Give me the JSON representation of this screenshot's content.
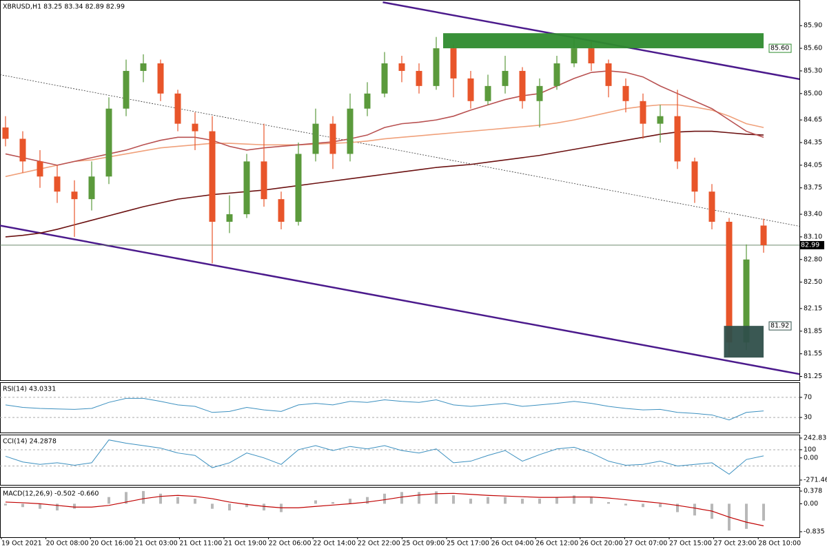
{
  "chart_data": [
    {
      "type": "candlestick",
      "title": "XBRUSD,H1  83.25 83.34 82.89 82.99",
      "ylim": [
        81.2,
        86.24
      ],
      "yticks": [
        {
          "value": 85.9,
          "label": "85.90"
        },
        {
          "value": 85.6,
          "label": "85.60"
        },
        {
          "value": 85.3,
          "label": "85.30"
        },
        {
          "value": 85.0,
          "label": "85.00"
        },
        {
          "value": 84.65,
          "label": "84.65"
        },
        {
          "value": 84.35,
          "label": "84.35"
        },
        {
          "value": 84.05,
          "label": "84.05"
        },
        {
          "value": 83.75,
          "label": "83.75"
        },
        {
          "value": 83.4,
          "label": "83.40"
        },
        {
          "value": 83.1,
          "label": "83.10"
        },
        {
          "value": 82.8,
          "label": "82.80"
        },
        {
          "value": 82.5,
          "label": "82.50"
        },
        {
          "value": 82.15,
          "label": "82.15"
        },
        {
          "value": 81.85,
          "label": "81.85"
        },
        {
          "value": 81.55,
          "label": "81.55"
        },
        {
          "value": 81.25,
          "label": "81.25"
        }
      ],
      "xtick_labels": [
        "19 Oct 2021",
        "20 Oct 08:00",
        "20 Oct 16:00",
        "21 Oct 03:00",
        "21 Oct 11:00",
        "21 Oct 19:00",
        "22 Oct 06:00",
        "22 Oct 14:00",
        "22 Oct 22:00",
        "25 Oct 09:00",
        "25 Oct 17:00",
        "26 Oct 04:00",
        "26 Oct 12:00",
        "26 Oct 20:00",
        "27 Oct 07:00",
        "27 Oct 15:00",
        "27 Oct 23:00",
        "28 Oct 10:00"
      ],
      "up_color": "#5b9a3c",
      "down_color": "#e8552a",
      "open": [
        84.55,
        84.4,
        84.1,
        83.9,
        83.7,
        83.6,
        83.9,
        84.8,
        85.3,
        85.4,
        85.0,
        84.6,
        84.5,
        83.3,
        83.4,
        84.1,
        83.6,
        83.3,
        84.2,
        84.6,
        84.2,
        84.8,
        85.0,
        85.4,
        85.3,
        85.1,
        85.6,
        85.2,
        84.9,
        85.1,
        85.3,
        84.9,
        85.1,
        85.4,
        85.6,
        85.4,
        85.1,
        84.9,
        84.6,
        84.7,
        84.1,
        83.7,
        83.3,
        81.7,
        83.25
      ],
      "high": [
        84.7,
        84.5,
        84.25,
        84.05,
        83.85,
        84.1,
        84.95,
        85.45,
        85.52,
        85.45,
        85.05,
        84.75,
        84.7,
        83.65,
        84.2,
        84.6,
        83.7,
        84.35,
        84.8,
        84.7,
        85.0,
        85.15,
        85.55,
        85.5,
        85.4,
        85.75,
        85.65,
        85.3,
        85.25,
        85.5,
        85.35,
        85.2,
        85.5,
        85.75,
        85.7,
        85.45,
        85.2,
        85.0,
        84.85,
        85.05,
        84.15,
        83.8,
        83.35,
        83.0,
        83.34
      ],
      "low": [
        84.3,
        83.95,
        83.75,
        83.55,
        83.1,
        83.45,
        83.8,
        84.7,
        85.15,
        84.9,
        84.5,
        84.25,
        82.75,
        83.15,
        83.35,
        83.5,
        83.2,
        83.25,
        84.1,
        84.0,
        84.1,
        84.7,
        84.95,
        85.15,
        85.0,
        85.05,
        84.95,
        84.8,
        84.85,
        85.0,
        84.8,
        84.55,
        85.05,
        85.35,
        85.3,
        84.95,
        84.75,
        84.4,
        84.35,
        84.0,
        83.55,
        83.2,
        81.52,
        81.6,
        82.89
      ],
      "close": [
        84.4,
        84.1,
        83.9,
        83.7,
        83.6,
        83.9,
        84.8,
        85.3,
        85.4,
        85.0,
        84.6,
        84.5,
        83.3,
        83.4,
        84.1,
        83.6,
        83.3,
        84.2,
        84.6,
        84.2,
        84.8,
        85.0,
        85.4,
        85.3,
        85.1,
        85.6,
        85.2,
        84.9,
        85.1,
        85.3,
        84.9,
        85.1,
        85.4,
        85.6,
        85.4,
        85.1,
        84.9,
        84.6,
        84.7,
        84.1,
        83.7,
        83.3,
        81.7,
        82.8,
        82.99
      ],
      "overlays": [
        {
          "color": "#6b1010",
          "values": [
            83.1,
            83.12,
            83.15,
            83.2,
            83.26,
            83.32,
            83.38,
            83.44,
            83.5,
            83.55,
            83.6,
            83.63,
            83.66,
            83.68,
            83.7,
            83.72,
            83.75,
            83.78,
            83.81,
            83.84,
            83.87,
            83.9,
            83.93,
            83.96,
            83.99,
            84.02,
            84.04,
            84.06,
            84.09,
            84.12,
            84.15,
            84.18,
            84.22,
            84.26,
            84.3,
            84.34,
            84.38,
            84.42,
            84.46,
            84.49,
            84.5,
            84.5,
            84.48,
            84.46,
            84.45
          ]
        },
        {
          "color": "#f0a07a",
          "values": [
            83.9,
            83.95,
            84.0,
            84.05,
            84.1,
            84.12,
            84.16,
            84.2,
            84.24,
            84.28,
            84.3,
            84.32,
            84.34,
            84.34,
            84.33,
            84.32,
            84.32,
            84.32,
            84.33,
            84.34,
            84.35,
            84.37,
            84.4,
            84.42,
            84.44,
            84.46,
            84.48,
            84.5,
            84.52,
            84.54,
            84.56,
            84.58,
            84.61,
            84.65,
            84.7,
            84.75,
            84.8,
            84.83,
            84.85,
            84.85,
            84.82,
            84.78,
            84.7,
            84.6,
            84.55
          ]
        },
        {
          "color": "#b85050",
          "values": [
            84.2,
            84.15,
            84.1,
            84.05,
            84.1,
            84.15,
            84.2,
            84.25,
            84.32,
            84.38,
            84.42,
            84.42,
            84.38,
            84.3,
            84.25,
            84.28,
            84.3,
            84.32,
            84.34,
            84.36,
            84.4,
            84.45,
            84.55,
            84.6,
            84.62,
            84.65,
            84.7,
            84.78,
            84.85,
            84.92,
            84.97,
            85.0,
            85.1,
            85.2,
            85.28,
            85.3,
            85.28,
            85.22,
            85.1,
            85.0,
            84.9,
            84.8,
            84.65,
            84.5,
            84.42
          ]
        }
      ],
      "trendlines": [
        {
          "color": "#4b1a8c",
          "width": 2.5,
          "from": [
            21.9,
            86.21
          ],
          "to": [
            46.1,
            85.19
          ]
        },
        {
          "color": "#4b1a8c",
          "width": 2.5,
          "from": [
            -0.32,
            83.25
          ],
          "to": [
            46.1,
            81.28
          ]
        },
        {
          "color": "#333333",
          "width": 0.8,
          "dashed": true,
          "from": [
            -0.32,
            85.25
          ],
          "to": [
            46.1,
            83.24
          ]
        }
      ],
      "zones": [
        {
          "color": "#2e8b2e",
          "from": 25.4,
          "to": 44.0,
          "low": 85.6,
          "high": 85.8,
          "label": "85.60"
        },
        {
          "color": "#2f4f4a",
          "from": 41.7,
          "to": 44.0,
          "low": 81.5,
          "high": 81.92,
          "label": "81.92"
        }
      ],
      "price_line": {
        "value": 82.99,
        "label": "82.99",
        "color": "#5a7a5a"
      }
    },
    {
      "type": "line",
      "title": "RSI(14) 43.0331",
      "ylim": [
        0,
        100
      ],
      "yticks": [
        70,
        30
      ],
      "grid_levels": [
        70,
        30
      ],
      "series": [
        {
          "color": "#3a8fbf",
          "values": [
            55,
            50,
            48,
            47,
            46,
            48,
            60,
            68,
            68,
            62,
            55,
            52,
            40,
            42,
            50,
            45,
            42,
            55,
            58,
            55,
            62,
            60,
            65,
            62,
            60,
            65,
            55,
            52,
            55,
            58,
            52,
            55,
            58,
            62,
            58,
            52,
            48,
            45,
            46,
            40,
            38,
            35,
            25,
            40,
            43.0331
          ]
        }
      ]
    },
    {
      "type": "line",
      "title": "CCI(14) 24.2878",
      "ylim": [
        -271.467,
        242.8361
      ],
      "yticks": [
        242.8361,
        100,
        {
          "value": 0,
          "label": "0.00"
        },
        -271.467
      ],
      "grid_levels": [
        100,
        -100
      ],
      "series": [
        {
          "color": "#3a8fbf",
          "values": [
            20,
            -50,
            -80,
            -60,
            -90,
            -60,
            220,
            180,
            150,
            120,
            60,
            30,
            -120,
            -60,
            60,
            0,
            -80,
            100,
            150,
            90,
            140,
            110,
            150,
            90,
            60,
            110,
            -60,
            -40,
            30,
            90,
            -40,
            40,
            110,
            130,
            60,
            -40,
            -90,
            -80,
            -40,
            -100,
            -80,
            -60,
            -200,
            -20,
            24.2878
          ]
        }
      ]
    },
    {
      "type": "macd",
      "title": "MACD(12,26,9) -0.502 -0.660",
      "ylim": [
        -0.835,
        0.378
      ],
      "yticks": [
        0.378,
        {
          "value": 0,
          "label": "0.00"
        },
        -0.835
      ],
      "color": "#b8b8b8",
      "values": [
        -0.05,
        -0.1,
        -0.15,
        -0.2,
        -0.15,
        0.0,
        0.2,
        0.35,
        0.38,
        0.3,
        0.2,
        0.15,
        -0.15,
        -0.2,
        -0.1,
        -0.2,
        -0.25,
        0.0,
        0.1,
        0.05,
        0.15,
        0.2,
        0.3,
        0.35,
        0.35,
        0.37,
        0.25,
        0.15,
        0.2,
        0.2,
        0.15,
        0.15,
        0.2,
        0.25,
        0.2,
        0.05,
        -0.05,
        -0.1,
        -0.1,
        -0.25,
        -0.35,
        -0.45,
        -0.8,
        -0.75,
        -0.502
      ],
      "series": [
        {
          "color": "#c00000",
          "values": [
            0.05,
            0.03,
            0.0,
            -0.05,
            -0.1,
            -0.1,
            -0.05,
            0.05,
            0.15,
            0.22,
            0.25,
            0.22,
            0.15,
            0.05,
            -0.02,
            -0.08,
            -0.12,
            -0.12,
            -0.08,
            -0.04,
            0.0,
            0.05,
            0.12,
            0.2,
            0.26,
            0.3,
            0.31,
            0.28,
            0.25,
            0.23,
            0.21,
            0.19,
            0.19,
            0.2,
            0.2,
            0.17,
            0.12,
            0.07,
            0.02,
            -0.05,
            -0.13,
            -0.22,
            -0.4,
            -0.55,
            -0.66
          ]
        }
      ]
    }
  ]
}
